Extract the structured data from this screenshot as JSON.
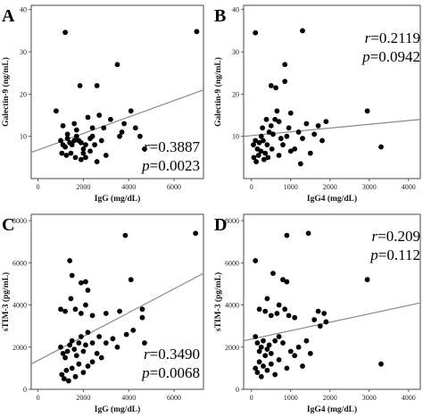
{
  "chart_data": [
    {
      "type": "scatter",
      "panel_label": "A",
      "xlabel": "IgG (mg/dL)",
      "ylabel": "Galectin-9 (ng/mL)",
      "xlim": [
        -300,
        7300
      ],
      "ylim": [
        0,
        41
      ],
      "xticks": [
        0,
        2000,
        4000,
        6000
      ],
      "yticks": [
        10,
        20,
        30,
        40
      ],
      "stat_r": "0.3887",
      "stat_p": "0.0023",
      "fit_line": {
        "x": [
          -300,
          7300
        ],
        "y": [
          6.2,
          21.0
        ]
      },
      "points": [
        [
          1200,
          34.6
        ],
        [
          7000,
          34.8
        ],
        [
          3500,
          27.0
        ],
        [
          1850,
          22.0
        ],
        [
          2600,
          22.0
        ],
        [
          800,
          16.0
        ],
        [
          4100,
          16.0
        ],
        [
          1100,
          12.5
        ],
        [
          1600,
          13.0
        ],
        [
          2200,
          14.5
        ],
        [
          2700,
          15.0
        ],
        [
          2900,
          12.0
        ],
        [
          3200,
          14.0
        ],
        [
          3800,
          13.0
        ],
        [
          4300,
          12.0
        ],
        [
          1000,
          9.0
        ],
        [
          1100,
          8.0
        ],
        [
          1200,
          7.5
        ],
        [
          1300,
          9.5
        ],
        [
          1400,
          8.5
        ],
        [
          1500,
          8.0
        ],
        [
          1600,
          9.0
        ],
        [
          1700,
          10.0
        ],
        [
          1800,
          9.0
        ],
        [
          1900,
          8.5
        ],
        [
          2000,
          7.0
        ],
        [
          2100,
          8.0
        ],
        [
          2300,
          9.5
        ],
        [
          2400,
          10.0
        ],
        [
          2500,
          8.0
        ],
        [
          1050,
          6.0
        ],
        [
          1250,
          5.5
        ],
        [
          1450,
          6.0
        ],
        [
          1650,
          5.0
        ],
        [
          1900,
          4.5
        ],
        [
          2100,
          5.0
        ],
        [
          2300,
          6.5
        ],
        [
          2600,
          4.0
        ],
        [
          3000,
          5.5
        ],
        [
          3600,
          10.0
        ],
        [
          3700,
          11.0
        ],
        [
          4500,
          10.0
        ],
        [
          4700,
          7.0
        ],
        [
          2400,
          12.0
        ],
        [
          1700,
          11.5
        ],
        [
          1300,
          10.5
        ],
        [
          2000,
          6.0
        ],
        [
          2800,
          9.0
        ]
      ]
    },
    {
      "type": "scatter",
      "panel_label": "B",
      "xlabel": "IgG4 (mg/dL)",
      "ylabel": "Galectin-9 (ng/mL)",
      "xlim": [
        -200,
        4300
      ],
      "ylim": [
        0,
        41
      ],
      "xticks": [
        0,
        1000,
        2000,
        3000,
        4000
      ],
      "yticks": [
        10,
        20,
        30,
        40
      ],
      "stat_r": "0.2119",
      "stat_p": "0.0942",
      "fit_line": {
        "x": [
          -200,
          4300
        ],
        "y": [
          10.0,
          14.0
        ]
      },
      "points": [
        [
          100,
          34.5
        ],
        [
          1300,
          35.0
        ],
        [
          850,
          27.0
        ],
        [
          500,
          22.0
        ],
        [
          620,
          21.5
        ],
        [
          850,
          23.0
        ],
        [
          1900,
          13.5
        ],
        [
          2950,
          16.0
        ],
        [
          3300,
          7.5
        ],
        [
          50,
          8.0
        ],
        [
          100,
          9.0
        ],
        [
          150,
          7.0
        ],
        [
          200,
          8.5
        ],
        [
          250,
          10.0
        ],
        [
          300,
          9.0
        ],
        [
          350,
          6.0
        ],
        [
          400,
          8.0
        ],
        [
          450,
          11.0
        ],
        [
          500,
          12.5
        ],
        [
          550,
          10.5
        ],
        [
          600,
          14.0
        ],
        [
          650,
          16.0
        ],
        [
          700,
          13.5
        ],
        [
          750,
          9.5
        ],
        [
          800,
          8.0
        ],
        [
          900,
          10.0
        ],
        [
          950,
          12.0
        ],
        [
          1000,
          15.5
        ],
        [
          1100,
          7.0
        ],
        [
          1200,
          11.0
        ],
        [
          1300,
          9.5
        ],
        [
          1400,
          13.0
        ],
        [
          1500,
          6.0
        ],
        [
          1600,
          10.5
        ],
        [
          1700,
          12.5
        ],
        [
          1800,
          9.0
        ],
        [
          60,
          5.0
        ],
        [
          120,
          4.0
        ],
        [
          180,
          5.5
        ],
        [
          240,
          6.5
        ],
        [
          320,
          4.5
        ],
        [
          420,
          5.0
        ],
        [
          520,
          7.0
        ],
        [
          700,
          5.5
        ],
        [
          1000,
          6.5
        ],
        [
          1250,
          3.5
        ],
        [
          280,
          12.0
        ],
        [
          380,
          14.0
        ]
      ]
    },
    {
      "type": "scatter",
      "panel_label": "C",
      "xlabel": "IgG (mg/dL)",
      "ylabel": "sTIM-3 (pg/mL)",
      "xlim": [
        -300,
        7300
      ],
      "ylim": [
        0,
        8300
      ],
      "xticks": [
        0,
        2000,
        4000,
        6000
      ],
      "yticks": [
        0,
        2000,
        4000,
        6000,
        8000
      ],
      "stat_r": "0.3490",
      "stat_p": "0.0068",
      "fit_line": {
        "x": [
          -300,
          7300
        ],
        "y": [
          1200,
          5500
        ]
      },
      "points": [
        [
          6950,
          7400
        ],
        [
          3850,
          7300
        ],
        [
          1400,
          6100
        ],
        [
          1500,
          5400
        ],
        [
          1900,
          5050
        ],
        [
          2100,
          5100
        ],
        [
          1000,
          3800
        ],
        [
          1200,
          3700
        ],
        [
          1450,
          4300
        ],
        [
          1650,
          3800
        ],
        [
          1900,
          3600
        ],
        [
          2100,
          4000
        ],
        [
          2200,
          4700
        ],
        [
          2400,
          3500
        ],
        [
          3000,
          3600
        ],
        [
          3600,
          3700
        ],
        [
          4100,
          5200
        ],
        [
          4600,
          3800
        ],
        [
          4600,
          3400
        ],
        [
          2700,
          2500
        ],
        [
          3300,
          2400
        ],
        [
          3900,
          2600
        ],
        [
          4200,
          2800
        ],
        [
          4700,
          2200
        ],
        [
          1000,
          2000
        ],
        [
          1100,
          1700
        ],
        [
          1200,
          1500
        ],
        [
          1300,
          1800
        ],
        [
          1400,
          2100
        ],
        [
          1500,
          2300
        ],
        [
          1600,
          1900
        ],
        [
          1700,
          1600
        ],
        [
          1800,
          2200
        ],
        [
          1900,
          2500
        ],
        [
          2000,
          1800
        ],
        [
          2100,
          2100
        ],
        [
          2200,
          2700
        ],
        [
          2400,
          2200
        ],
        [
          2600,
          1700
        ],
        [
          3000,
          2200
        ],
        [
          3500,
          2000
        ],
        [
          1050,
          700
        ],
        [
          1150,
          500
        ],
        [
          1250,
          900
        ],
        [
          1350,
          400
        ],
        [
          1500,
          1000
        ],
        [
          1650,
          600
        ],
        [
          1800,
          1200
        ],
        [
          2000,
          800
        ],
        [
          2200,
          1100
        ],
        [
          2400,
          1300
        ],
        [
          2800,
          1500
        ]
      ]
    },
    {
      "type": "scatter",
      "panel_label": "D",
      "xlabel": "IgG4 (mg/dL)",
      "ylabel": "sTIM-3 (pg/mL)",
      "xlim": [
        -200,
        4300
      ],
      "ylim": [
        0,
        8300
      ],
      "xticks": [
        0,
        1000,
        2000,
        3000,
        4000
      ],
      "yticks": [
        0,
        2000,
        4000,
        6000,
        8000
      ],
      "stat_r": "0.209",
      "stat_p": "0.112",
      "fit_line": {
        "x": [
          -200,
          4300
        ],
        "y": [
          2300,
          4100
        ]
      },
      "points": [
        [
          1450,
          7400
        ],
        [
          900,
          7300
        ],
        [
          100,
          6100
        ],
        [
          550,
          5500
        ],
        [
          800,
          5200
        ],
        [
          900,
          5100
        ],
        [
          2950,
          5200
        ],
        [
          3300,
          1200
        ],
        [
          200,
          3800
        ],
        [
          350,
          3700
        ],
        [
          400,
          4300
        ],
        [
          500,
          3500
        ],
        [
          650,
          3600
        ],
        [
          700,
          4000
        ],
        [
          850,
          3800
        ],
        [
          950,
          3500
        ],
        [
          1100,
          3400
        ],
        [
          1600,
          3300
        ],
        [
          1700,
          3700
        ],
        [
          1850,
          3600
        ],
        [
          1750,
          3000
        ],
        [
          1900,
          3200
        ],
        [
          100,
          2500
        ],
        [
          150,
          2200
        ],
        [
          200,
          1800
        ],
        [
          250,
          2000
        ],
        [
          300,
          2300
        ],
        [
          350,
          1600
        ],
        [
          400,
          1900
        ],
        [
          450,
          2100
        ],
        [
          500,
          1700
        ],
        [
          600,
          2300
        ],
        [
          700,
          2500
        ],
        [
          800,
          2200
        ],
        [
          1000,
          1800
        ],
        [
          1200,
          2000
        ],
        [
          1400,
          2300
        ],
        [
          100,
          1000
        ],
        [
          150,
          800
        ],
        [
          200,
          1300
        ],
        [
          250,
          600
        ],
        [
          300,
          1100
        ],
        [
          400,
          900
        ],
        [
          500,
          1200
        ],
        [
          600,
          700
        ],
        [
          700,
          1400
        ],
        [
          900,
          1000
        ],
        [
          1100,
          1600
        ],
        [
          1300,
          1100
        ],
        [
          1500,
          1700
        ]
      ]
    }
  ]
}
